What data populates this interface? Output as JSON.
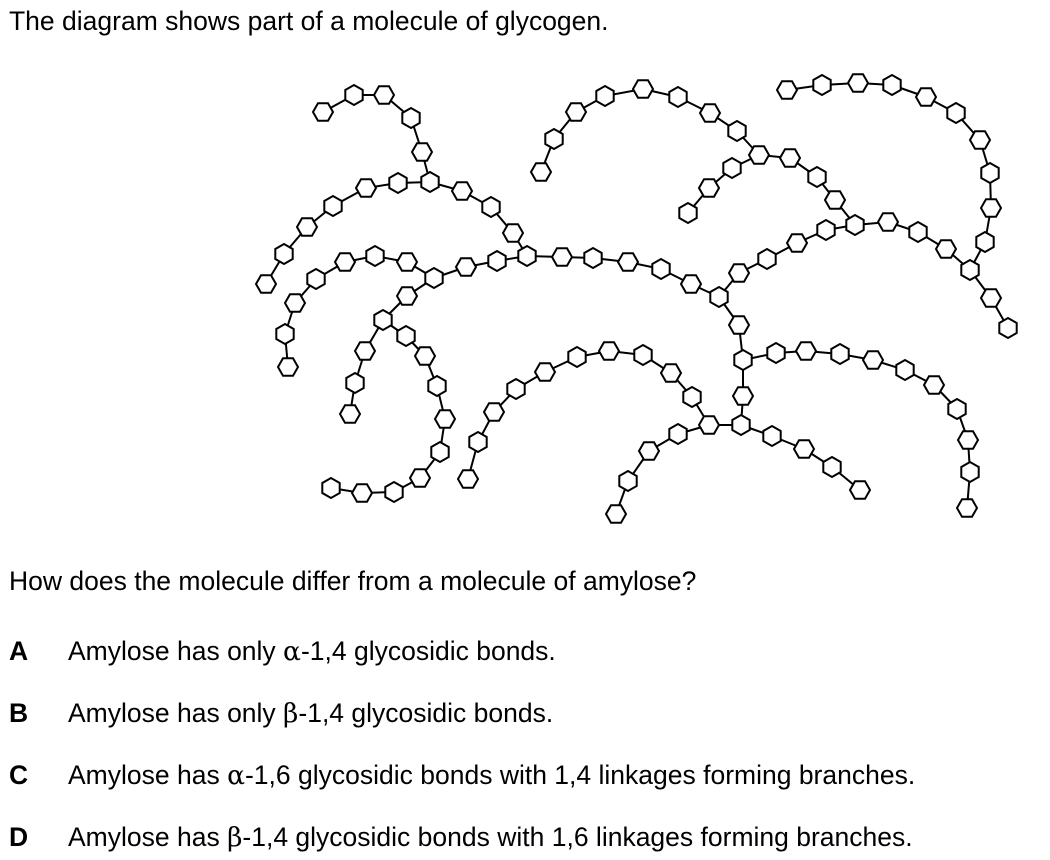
{
  "intro": "The diagram shows part of a molecule of glycogen.",
  "question": "How does the molecule differ from a molecule of amylose?",
  "options": [
    {
      "letter": "A",
      "pre": "Amylose has only ",
      "greek": "α",
      "post": "-1,4 glycosidic bonds."
    },
    {
      "letter": "B",
      "pre": "Amylose has only ",
      "greek": "β",
      "post": "-1,4 glycosidic bonds."
    },
    {
      "letter": "C",
      "pre": "Amylose has ",
      "greek": "α",
      "post": "-1,6 glycosidic bonds with 1,4 linkages forming branches."
    },
    {
      "letter": "D",
      "pre": "Amylose has ",
      "greek": "β",
      "post": "-1,4 glycosidic bonds with 1,6 linkages forming branches."
    }
  ],
  "diagram": {
    "ring_color": "#000000",
    "ring_fill": "#ffffff"
  }
}
